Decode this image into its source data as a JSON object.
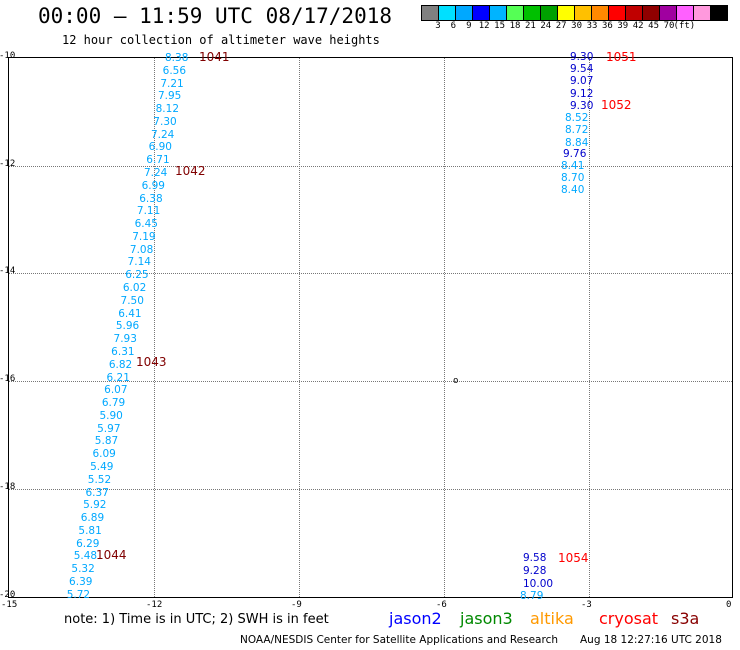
{
  "title": "00:00 – 11:59 UTC 08/17/2018",
  "subtitle": "12 hour collection of altimeter wave heights",
  "colorbar": {
    "colors": [
      "#808080",
      "#00e0ff",
      "#00a8ff",
      "#0000ff",
      "#00b4ff",
      "#55ff55",
      "#00c000",
      "#00a000",
      "#ffff00",
      "#ffc000",
      "#ff8800",
      "#ff0000",
      "#c00000",
      "#900000",
      "#a000a0",
      "#ff60ff",
      "#ff99dd",
      "#000000"
    ],
    "labels": [
      "3",
      "6",
      "9",
      "12",
      "15",
      "18",
      "21",
      "24",
      "27",
      "30",
      "33",
      "36",
      "39",
      "42",
      "45",
      "70",
      "(ft)"
    ]
  },
  "axes": {
    "y_ticks": [
      "-10",
      "-12",
      "-14",
      "-16",
      "-18",
      "-20"
    ],
    "x_ticks": [
      "-15",
      "-12",
      "-9",
      "-6",
      "-3",
      "0"
    ]
  },
  "tracks": [
    {
      "color": "#00a8ff",
      "values": [
        "8.38",
        "6.56",
        "7.21",
        "7.95",
        "8.12",
        "7.30",
        "7.24",
        "6.90",
        "6.71",
        "7.24",
        "6.99",
        "6.38",
        "7.11",
        "6.45",
        "7.19",
        "7.08",
        "7.14",
        "6.25",
        "6.02",
        "7.50",
        "6.41",
        "5.96",
        "7.93",
        "6.31",
        "6.82",
        "6.21",
        "6.07",
        "6.79",
        "5.90",
        "5.97",
        "5.87",
        "6.09",
        "5.49",
        "5.52",
        "6.37",
        "5.92",
        "6.89",
        "5.81",
        "6.29",
        "5.48",
        "5.32",
        "6.39",
        "5.72"
      ]
    },
    {
      "color": "#0000cc",
      "values": [
        "9.30",
        "9.54",
        "9.07",
        "9.12",
        "9.30"
      ]
    },
    {
      "color": "#00a8ff",
      "values": [
        "8.52",
        "8.72",
        "8.84"
      ]
    },
    {
      "color": "#0000cc",
      "values": [
        "9.76"
      ]
    },
    {
      "color": "#00a8ff",
      "values": [
        "8.41",
        "8.70",
        "8.40"
      ]
    },
    {
      "color": "#0000cc",
      "values": [
        "9.58",
        "9.28",
        "10.00"
      ]
    },
    {
      "color": "#00a8ff",
      "values": [
        "8.79"
      ]
    }
  ],
  "times": [
    {
      "label": "1041",
      "color": "#800000"
    },
    {
      "label": "1042",
      "color": "#800000"
    },
    {
      "label": "1043",
      "color": "#800000"
    },
    {
      "label": "1044",
      "color": "#800000"
    },
    {
      "label": "1051",
      "color": "#ff0000"
    },
    {
      "label": "1052",
      "color": "#ff0000"
    },
    {
      "label": "1054",
      "color": "#ff0000"
    }
  ],
  "island_label": "o",
  "note": "note:  1) Time is in UTC;  2) SWH is in feet",
  "satellites": [
    {
      "name": "jason2",
      "color": "#0000ff"
    },
    {
      "name": "jason3",
      "color": "#008800"
    },
    {
      "name": "altika",
      "color": "#ff9900"
    },
    {
      "name": "cryosat",
      "color": "#ff0000"
    },
    {
      "name": "s3a",
      "color": "#880000"
    }
  ],
  "footer_left": "NOAA/NESDIS Center for Satellite Applications and Research",
  "footer_right": "Aug 18 12:27:16 UTC 2018"
}
